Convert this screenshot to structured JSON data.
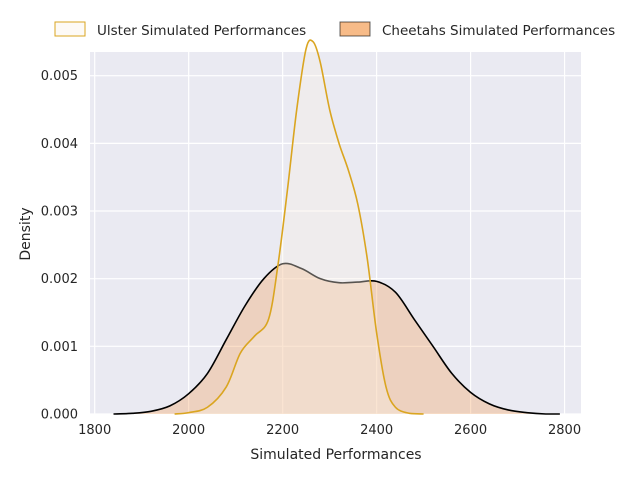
{
  "chart_data": {
    "type": "area",
    "title": "",
    "xlabel": "Simulated Performances",
    "ylabel": "Density",
    "xlim": [
      1790,
      2835
    ],
    "ylim": [
      0,
      0.00535
    ],
    "x_ticks": [
      1800,
      2000,
      2200,
      2400,
      2600,
      2800
    ],
    "y_ticks": [
      0.0,
      0.001,
      0.002,
      0.003,
      0.004,
      0.005
    ],
    "x_tick_labels": [
      "1800",
      "2000",
      "2200",
      "2400",
      "2600",
      "2800"
    ],
    "y_tick_labels": [
      "0.000",
      "0.001",
      "0.002",
      "0.003",
      "0.004",
      "0.005"
    ],
    "grid": true,
    "legend_position": "top (outside plot)",
    "series": [
      {
        "name": "Ulster Simulated Performances",
        "line_color": "#DAA520",
        "fill_color": "#FAF0E6",
        "fill_opacity": 0.35,
        "x": [
          1970,
          2000,
          2040,
          2080,
          2110,
          2140,
          2170,
          2190,
          2210,
          2230,
          2250,
          2265,
          2280,
          2300,
          2320,
          2340,
          2360,
          2380,
          2400,
          2420,
          2440,
          2470,
          2500
        ],
        "values": [
          0.0,
          2e-05,
          0.0001,
          0.0004,
          0.0009,
          0.00115,
          0.0014,
          0.0022,
          0.0033,
          0.0045,
          0.0054,
          0.0055,
          0.0052,
          0.0045,
          0.004,
          0.0036,
          0.0031,
          0.0023,
          0.0012,
          0.0004,
          0.0001,
          1e-05,
          0.0
        ]
      },
      {
        "name": "Cheetahs Simulated Performances",
        "line_color": "#000000",
        "fill_color": "#F4A460",
        "fill_opacity": 0.35,
        "x": [
          1840,
          1880,
          1920,
          1960,
          2000,
          2040,
          2080,
          2120,
          2160,
          2200,
          2240,
          2280,
          2320,
          2360,
          2400,
          2440,
          2480,
          2520,
          2560,
          2600,
          2640,
          2680,
          2720,
          2760,
          2790
        ],
        "values": [
          0.0,
          1e-05,
          4e-05,
          0.00012,
          0.0003,
          0.0006,
          0.0011,
          0.0016,
          0.002,
          0.00222,
          0.00215,
          0.002,
          0.00194,
          0.00195,
          0.00196,
          0.0018,
          0.0014,
          0.001,
          0.0006,
          0.00032,
          0.00015,
          6e-05,
          2e-05,
          0.0,
          0.0
        ]
      }
    ]
  }
}
